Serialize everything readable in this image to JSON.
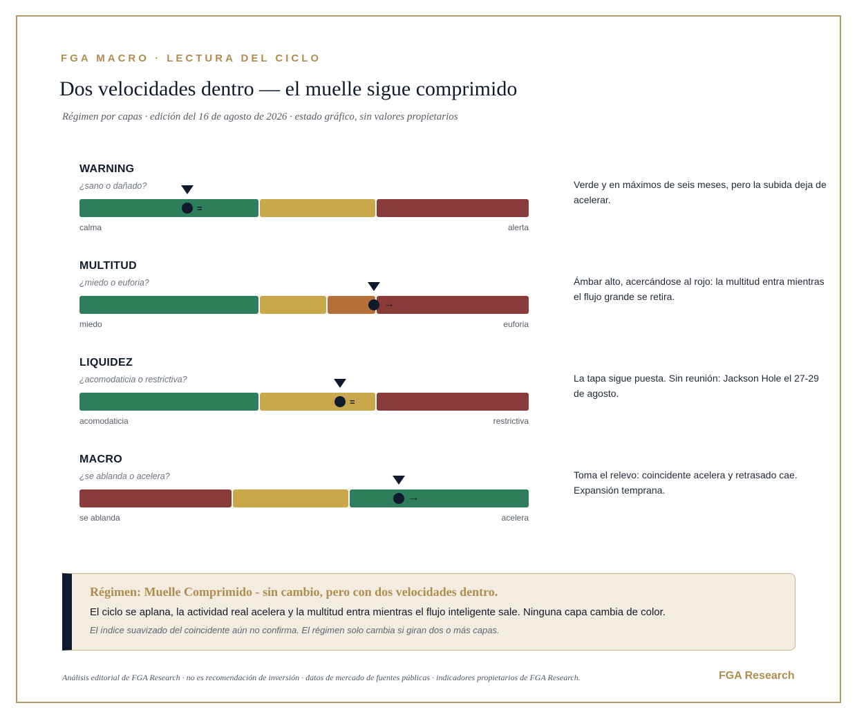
{
  "header": {
    "kicker": "FGA MACRO · LECTURA DEL CICLO",
    "title": "Dos velocidades dentro — el muelle sigue comprimido",
    "subtitle": "Régimen por capas · edición del 16 de agosto de 2026 · estado gráfico, sin valores propietarios"
  },
  "colors": {
    "green": "#2e7d5b",
    "amber": "#c8a84b",
    "orange": "#b5703a",
    "red": "#8b3a3a",
    "ink": "#0f1b2d",
    "gold": "#b08d4f"
  },
  "layers": [
    {
      "name": "WARNING",
      "question": "¿sano o dañado?",
      "left_label": "calma",
      "right_label": "alerta",
      "trend": "=",
      "position": 0.24,
      "note": "Verde y en máximos de seis meses, pero la subida deja de acelerar.",
      "segments": [
        {
          "color": "green",
          "from": 0.0,
          "to": 0.4
        },
        {
          "color": "amber",
          "from": 0.4,
          "to": 0.66
        },
        {
          "color": "red",
          "from": 0.66,
          "to": 1.0
        }
      ]
    },
    {
      "name": "MULTITUD",
      "question": "¿miedo o euforia?",
      "left_label": "miedo",
      "right_label": "euforia",
      "trend": "→",
      "position": 0.655,
      "note": "Ámbar alto, acercándose al rojo: la multitud entra mientras el flujo grande se retira.",
      "segments": [
        {
          "color": "green",
          "from": 0.0,
          "to": 0.4
        },
        {
          "color": "amber",
          "from": 0.4,
          "to": 0.55
        },
        {
          "color": "orange",
          "from": 0.55,
          "to": 0.66
        },
        {
          "color": "red",
          "from": 0.66,
          "to": 1.0
        }
      ]
    },
    {
      "name": "LIQUIDEZ",
      "question": "¿acomodaticia o restrictiva?",
      "left_label": "acomodaticia",
      "right_label": "restrictiva",
      "trend": "=",
      "position": 0.58,
      "note": "La tapa sigue puesta. Sin reunión: Jackson Hole el 27-29 de agosto.",
      "segments": [
        {
          "color": "green",
          "from": 0.0,
          "to": 0.4
        },
        {
          "color": "amber",
          "from": 0.4,
          "to": 0.66
        },
        {
          "color": "red",
          "from": 0.66,
          "to": 1.0
        }
      ]
    },
    {
      "name": "MACRO",
      "question": "¿se ablanda o acelera?",
      "left_label": "se ablanda",
      "right_label": "acelera",
      "trend": "→",
      "position": 0.71,
      "note": "Toma el relevo: coincidente acelera y retrasado cae. Expansión temprana.",
      "segments": [
        {
          "color": "red",
          "from": 0.0,
          "to": 0.34
        },
        {
          "color": "amber",
          "from": 0.34,
          "to": 0.6
        },
        {
          "color": "green",
          "from": 0.6,
          "to": 1.0
        }
      ]
    }
  ],
  "regime": {
    "title": "Régimen: Muelle Comprimido - sin cambio, pero con dos velocidades dentro.",
    "body": "El ciclo se aplana, la actividad real acelera y la multitud entra mientras el flujo inteligente sale. Ninguna capa cambia de color.",
    "note": "El índice suavizado del coincidente aún no confirma. El régimen solo cambia si giran dos o más capas."
  },
  "footer": {
    "disclaimer": "Análisis editorial de FGA Research · no es recomendación de inversión · datos de mercado de fuentes públicas · indicadores propietarios de FGA Research.",
    "brand": "FGA Research"
  }
}
